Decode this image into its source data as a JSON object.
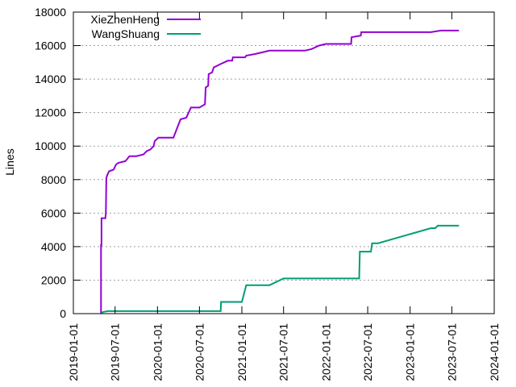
{
  "chart_data": {
    "type": "line",
    "title": "",
    "xlabel": "",
    "ylabel": "Lines",
    "xlim": [
      "2019-01-01",
      "2024-01-01"
    ],
    "ylim": [
      0,
      18000
    ],
    "x_ticks": [
      "2019-01-01",
      "2019-07-01",
      "2020-01-01",
      "2020-07-01",
      "2021-01-01",
      "2021-07-01",
      "2022-01-01",
      "2022-07-01",
      "2023-01-01",
      "2023-07-01",
      "2024-01-01"
    ],
    "y_ticks": [
      0,
      2000,
      4000,
      6000,
      8000,
      10000,
      12000,
      14000,
      16000,
      18000
    ],
    "grid": "horizontal dashed",
    "legend_position": "top-left",
    "series": [
      {
        "name": "XieZhenHeng",
        "color": "#9400d3",
        "points": [
          [
            "2019-05-01",
            0
          ],
          [
            "2019-05-01",
            4100
          ],
          [
            "2019-05-03",
            4100
          ],
          [
            "2019-05-03",
            5700
          ],
          [
            "2019-05-20",
            5700
          ],
          [
            "2019-05-22",
            6000
          ],
          [
            "2019-05-24",
            8100
          ],
          [
            "2019-05-29",
            8300
          ],
          [
            "2019-06-05",
            8500
          ],
          [
            "2019-06-25",
            8600
          ],
          [
            "2019-07-05",
            8900
          ],
          [
            "2019-07-15",
            9000
          ],
          [
            "2019-08-15",
            9100
          ],
          [
            "2019-09-01",
            9400
          ],
          [
            "2019-10-01",
            9400
          ],
          [
            "2019-11-01",
            9500
          ],
          [
            "2019-11-15",
            9700
          ],
          [
            "2019-12-01",
            9800
          ],
          [
            "2019-12-15",
            10000
          ],
          [
            "2019-12-20",
            10300
          ],
          [
            "2020-01-05",
            10500
          ],
          [
            "2020-03-10",
            10500
          ],
          [
            "2020-04-10",
            11600
          ],
          [
            "2020-05-05",
            11700
          ],
          [
            "2020-05-25",
            12300
          ],
          [
            "2020-07-01",
            12300
          ],
          [
            "2020-07-25",
            12500
          ],
          [
            "2020-07-28",
            13500
          ],
          [
            "2020-08-08",
            13600
          ],
          [
            "2020-08-10",
            14300
          ],
          [
            "2020-08-25",
            14400
          ],
          [
            "2020-09-01",
            14700
          ],
          [
            "2020-10-01",
            14900
          ],
          [
            "2020-11-01",
            15100
          ],
          [
            "2020-11-20",
            15100
          ],
          [
            "2020-11-23",
            15300
          ],
          [
            "2021-01-15",
            15300
          ],
          [
            "2021-01-20",
            15400
          ],
          [
            "2021-03-01",
            15500
          ],
          [
            "2021-04-01",
            15600
          ],
          [
            "2021-05-01",
            15700
          ],
          [
            "2021-10-01",
            15700
          ],
          [
            "2021-11-01",
            15800
          ],
          [
            "2021-12-01",
            16000
          ],
          [
            "2022-01-01",
            16100
          ],
          [
            "2022-04-20",
            16100
          ],
          [
            "2022-04-22",
            16500
          ],
          [
            "2022-06-01",
            16600
          ],
          [
            "2022-06-03",
            16800
          ],
          [
            "2023-04-01",
            16800
          ],
          [
            "2023-05-15",
            16900
          ],
          [
            "2023-08-01",
            16900
          ]
        ]
      },
      {
        "name": "WangShuang",
        "color": "#009e73",
        "points": [
          [
            "2019-05-01",
            0
          ],
          [
            "2019-05-10",
            100
          ],
          [
            "2019-06-01",
            150
          ],
          [
            "2020-10-01",
            150
          ],
          [
            "2020-10-03",
            700
          ],
          [
            "2021-01-01",
            700
          ],
          [
            "2021-01-20",
            1700
          ],
          [
            "2021-05-01",
            1700
          ],
          [
            "2021-07-01",
            2100
          ],
          [
            "2022-05-25",
            2100
          ],
          [
            "2022-05-28",
            3700
          ],
          [
            "2022-07-15",
            3700
          ],
          [
            "2022-07-20",
            4200
          ],
          [
            "2022-08-15",
            4200
          ],
          [
            "2023-04-01",
            5100
          ],
          [
            "2023-04-20",
            5100
          ],
          [
            "2023-05-01",
            5250
          ],
          [
            "2023-08-01",
            5250
          ]
        ]
      }
    ]
  }
}
